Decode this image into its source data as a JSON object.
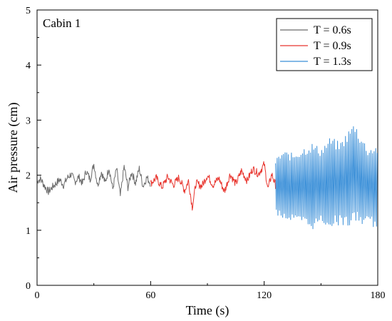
{
  "chart_data": {
    "type": "line",
    "annotation": "Cabin 1",
    "xlabel": "Time (s)",
    "ylabel": "Air pressure (cm)",
    "xlim": [
      0,
      180
    ],
    "ylim": [
      0,
      5
    ],
    "xticks": [
      0,
      60,
      120,
      180
    ],
    "yticks": [
      0,
      1,
      2,
      3,
      4,
      5
    ],
    "grid": false,
    "legend_position": "top-right",
    "series": [
      {
        "name": "T = 0.6s",
        "color": "#6b6b6b",
        "x": [
          0,
          2,
          4,
          6,
          8,
          10,
          12,
          14,
          16,
          18,
          20,
          22,
          24,
          26,
          28,
          30,
          32,
          34,
          36,
          38,
          40,
          42,
          44,
          46,
          48,
          50,
          52,
          54,
          56,
          58,
          60
        ],
        "y": [
          1.9,
          1.93,
          1.8,
          1.7,
          1.78,
          1.85,
          1.92,
          1.82,
          1.95,
          2.02,
          1.88,
          1.97,
          1.85,
          2.08,
          1.92,
          2.2,
          1.82,
          2.06,
          1.86,
          2.14,
          1.75,
          2.12,
          1.62,
          2.16,
          1.78,
          2.06,
          1.86,
          2.12,
          1.8,
          1.96,
          1.85
        ]
      },
      {
        "name": "T = 0.9s",
        "color": "#e8352e",
        "x": [
          60,
          63,
          66,
          69,
          72,
          75,
          78,
          80,
          82,
          84,
          87,
          90,
          93,
          96,
          99,
          102,
          105,
          108,
          111,
          114,
          117,
          120,
          122,
          124,
          126
        ],
        "y": [
          1.85,
          1.95,
          1.78,
          1.97,
          1.82,
          1.96,
          1.72,
          1.9,
          1.42,
          1.86,
          1.8,
          2.0,
          1.82,
          1.95,
          1.7,
          2.02,
          1.84,
          2.08,
          1.9,
          2.12,
          2.02,
          2.2,
          1.75,
          2.02,
          1.82
        ]
      },
      {
        "name": "T = 1.3s",
        "color": "#3a8fd8",
        "x": [
          126,
          130,
          135,
          140,
          145,
          150,
          155,
          160,
          165,
          168,
          170,
          175,
          178,
          180
        ],
        "y_upper": [
          2.3,
          2.45,
          2.4,
          2.5,
          2.6,
          2.5,
          2.7,
          2.6,
          2.85,
          2.98,
          2.8,
          2.5,
          2.55,
          2.55
        ],
        "y_lower": [
          1.3,
          1.2,
          1.15,
          1.1,
          1.0,
          1.12,
          1.05,
          1.1,
          1.05,
          1.15,
          1.1,
          1.1,
          1.05,
          1.05
        ]
      }
    ]
  }
}
